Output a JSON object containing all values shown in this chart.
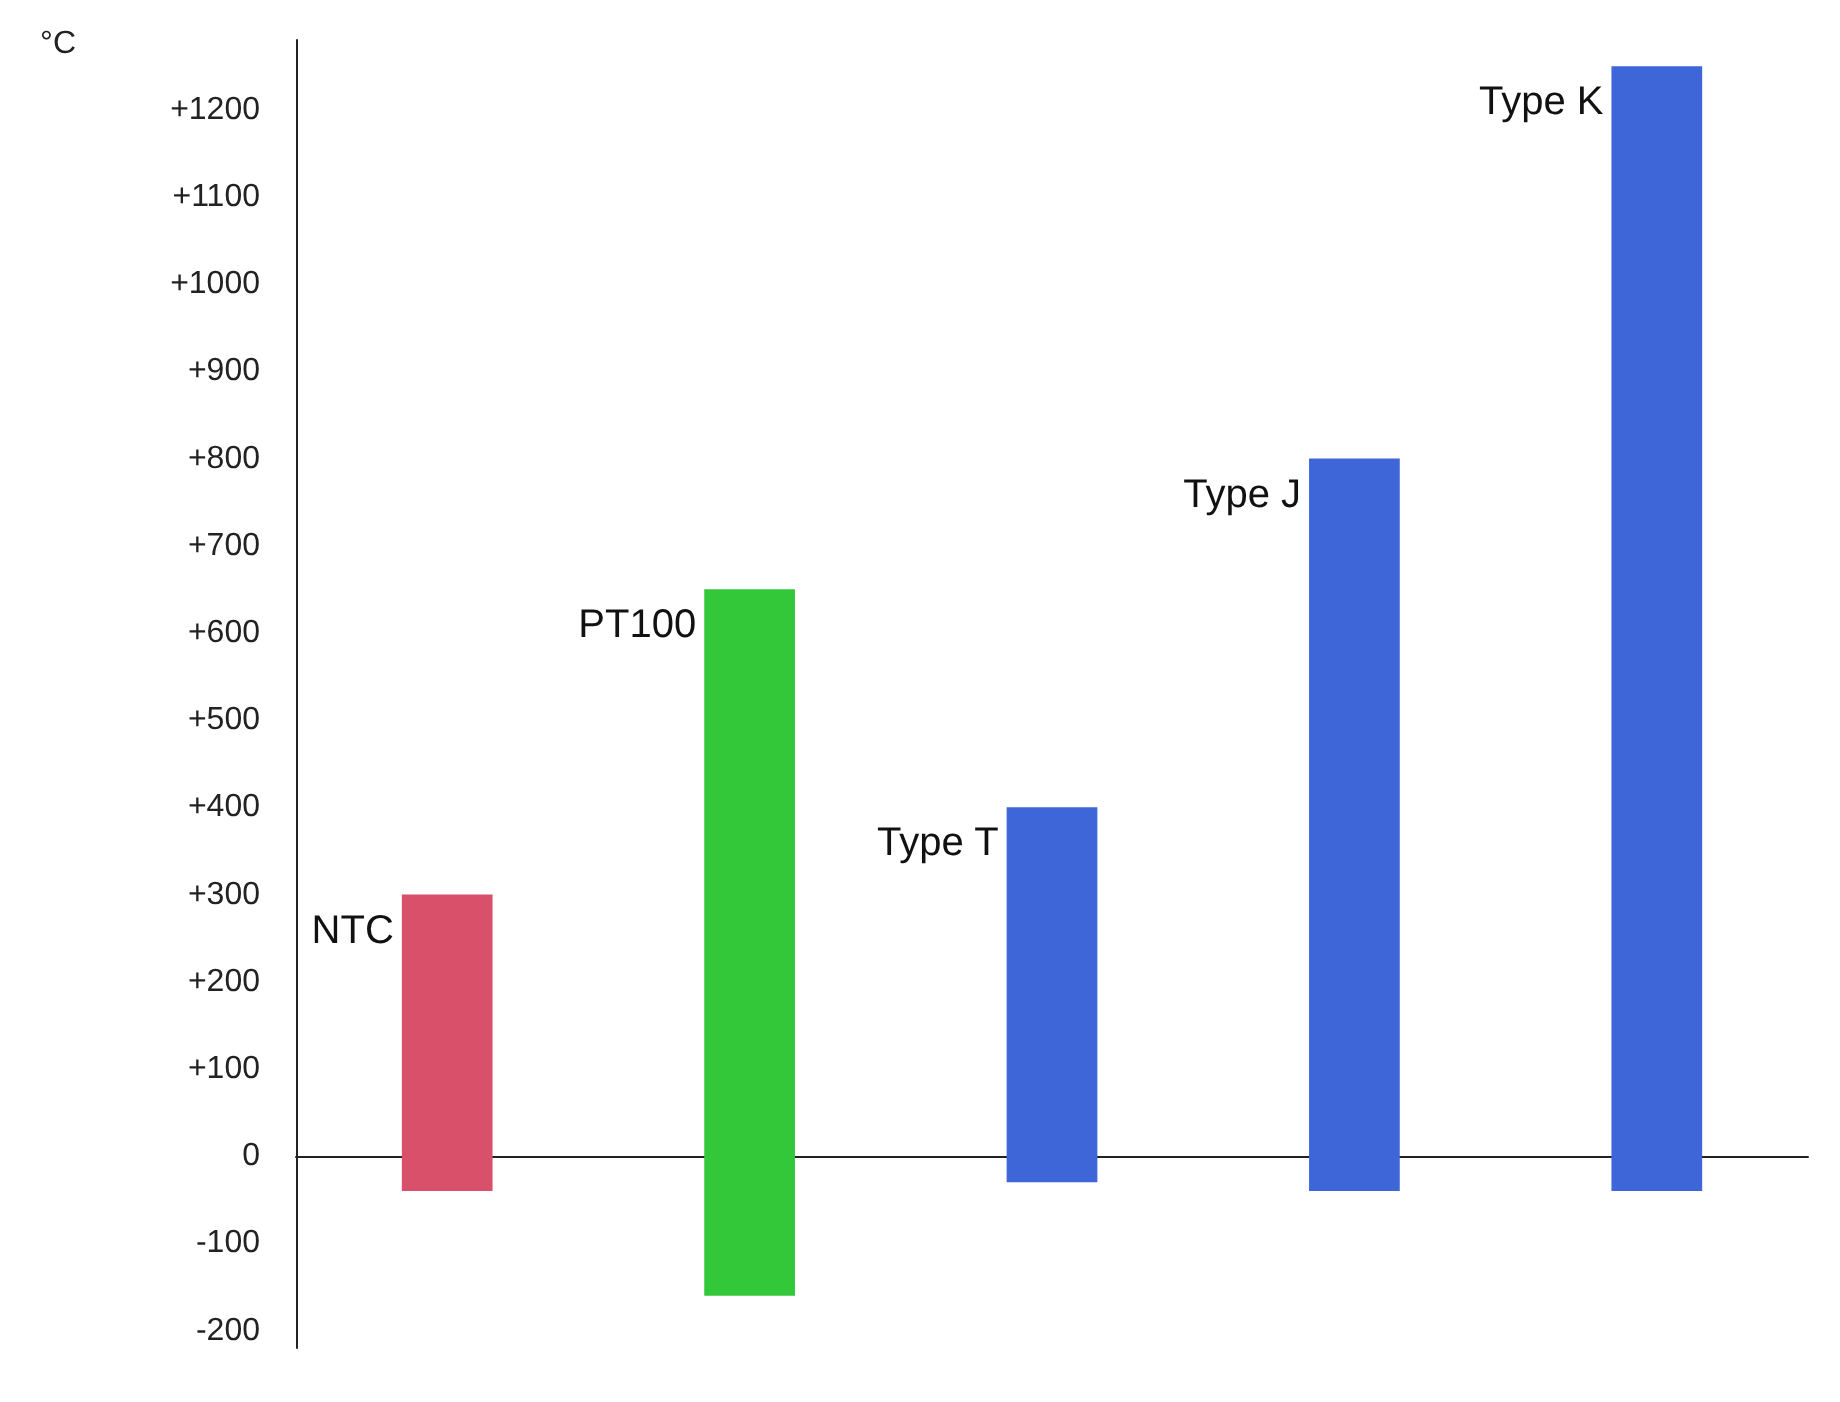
{
  "chart_data": {
    "type": "bar",
    "ylabel": "°C",
    "categories": [
      "NTC",
      "PT100",
      "Type T",
      "Type J",
      "Type K"
    ],
    "base": [
      -40,
      -160,
      -30,
      -40,
      -40
    ],
    "values": [
      340,
      810,
      430,
      840,
      1290
    ],
    "colors": [
      "#d9506a",
      "#33c83a",
      "#3f66d8",
      "#3f66d8",
      "#3f66d8"
    ],
    "ylim": [
      -220,
      1280
    ],
    "yticks": [
      -200,
      -100,
      0,
      {
        "value": 100,
        "label": "+100"
      },
      {
        "value": 200,
        "label": "+200"
      },
      {
        "value": 300,
        "label": "+300"
      },
      {
        "value": 400,
        "label": "+400"
      },
      {
        "value": 500,
        "label": "+500"
      },
      {
        "value": 600,
        "label": "+600"
      },
      {
        "value": 700,
        "label": "+700"
      },
      {
        "value": 800,
        "label": "+800"
      },
      {
        "value": 900,
        "label": "+900"
      },
      {
        "value": 1000,
        "label": "+1000"
      },
      {
        "value": 1100,
        "label": "+1100"
      },
      {
        "value": 1200,
        "label": "+1200"
      }
    ],
    "tick_labels": "y"
  }
}
